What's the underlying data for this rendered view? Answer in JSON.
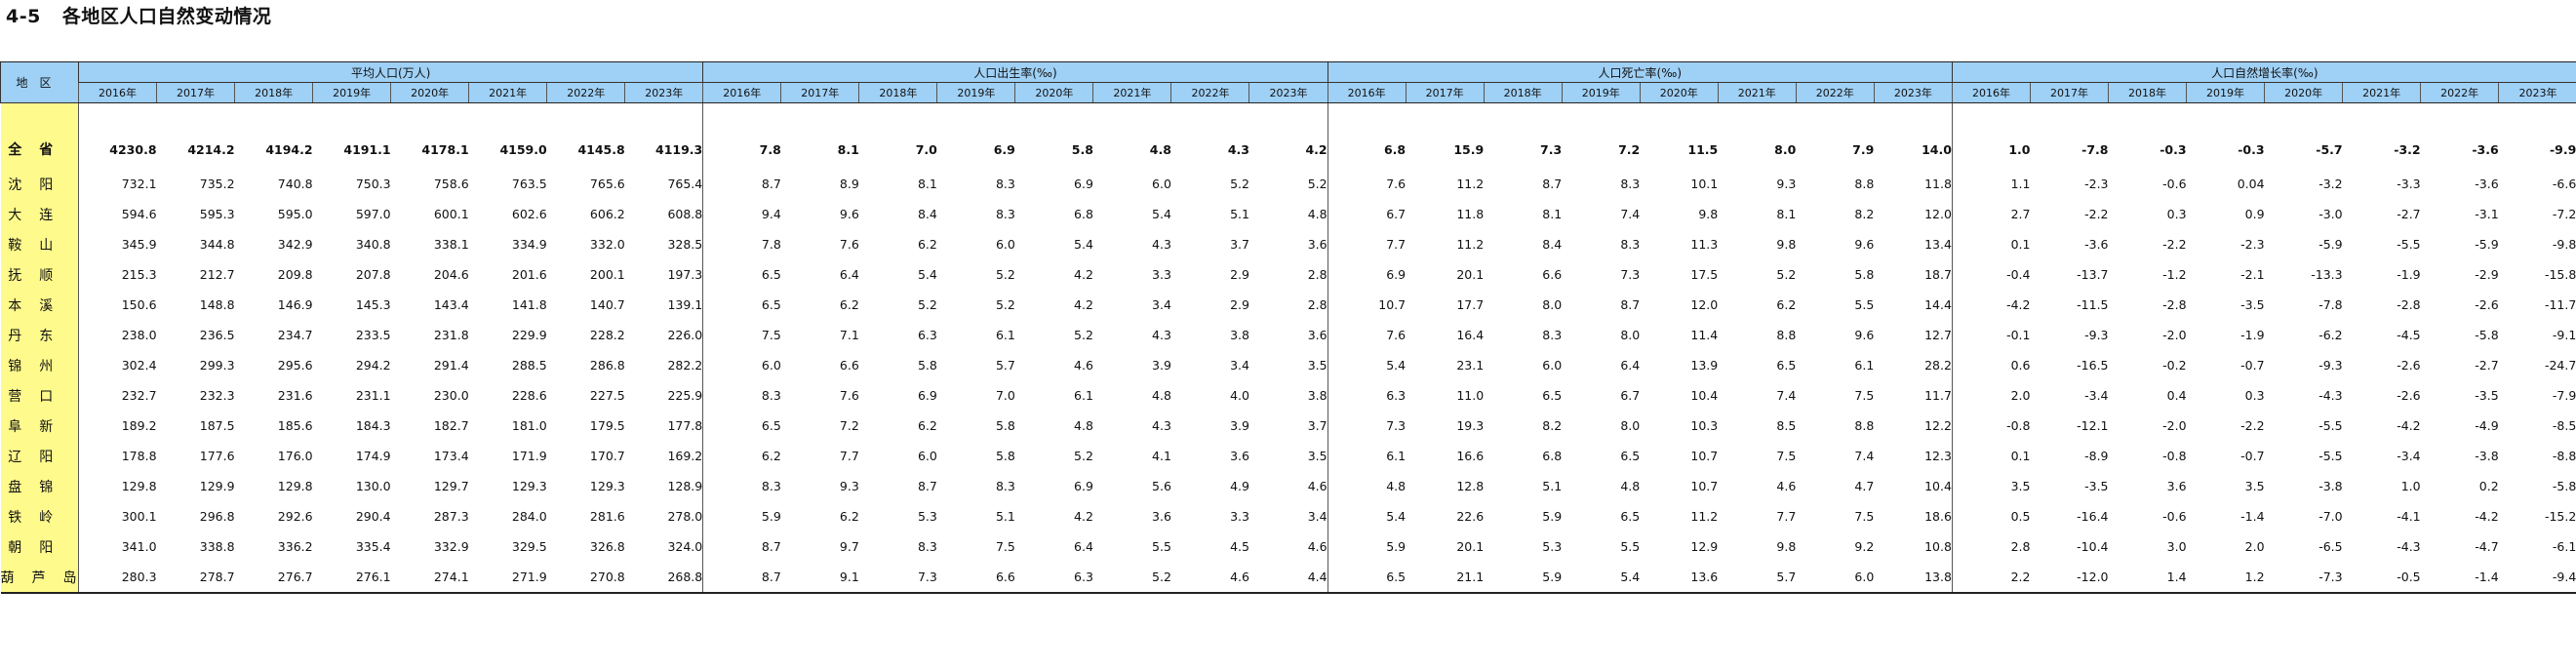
{
  "title": {
    "number": "4-5",
    "text": "各地区人口自然变动情况"
  },
  "region_header": "地区",
  "groups": [
    "平均人口(万人)",
    "人口出生率(‰)",
    "人口死亡率(‰)",
    "人口自然增长率(‰)"
  ],
  "years": [
    "2016年",
    "2017年",
    "2018年",
    "2019年",
    "2020年",
    "2021年",
    "2022年",
    "2023年"
  ],
  "rows": [
    {
      "region": "全省",
      "values": [
        "4230.8",
        "4214.2",
        "4194.2",
        "4191.1",
        "4178.1",
        "4159.0",
        "4145.8",
        "4119.3",
        "7.8",
        "8.1",
        "7.0",
        "6.9",
        "5.8",
        "4.8",
        "4.3",
        "4.2",
        "6.8",
        "15.9",
        "7.3",
        "7.2",
        "11.5",
        "8.0",
        "7.9",
        "14.0",
        "1.0",
        "-7.8",
        "-0.3",
        "-0.3",
        "-5.7",
        "-3.2",
        "-3.6",
        "-9.9"
      ]
    },
    {
      "region": "沈阳",
      "values": [
        "732.1",
        "735.2",
        "740.8",
        "750.3",
        "758.6",
        "763.5",
        "765.6",
        "765.4",
        "8.7",
        "8.9",
        "8.1",
        "8.3",
        "6.9",
        "6.0",
        "5.2",
        "5.2",
        "7.6",
        "11.2",
        "8.7",
        "8.3",
        "10.1",
        "9.3",
        "8.8",
        "11.8",
        "1.1",
        "-2.3",
        "-0.6",
        "0.04",
        "-3.2",
        "-3.3",
        "-3.6",
        "-6.6"
      ]
    },
    {
      "region": "大连",
      "values": [
        "594.6",
        "595.3",
        "595.0",
        "597.0",
        "600.1",
        "602.6",
        "606.2",
        "608.8",
        "9.4",
        "9.6",
        "8.4",
        "8.3",
        "6.8",
        "5.4",
        "5.1",
        "4.8",
        "6.7",
        "11.8",
        "8.1",
        "7.4",
        "9.8",
        "8.1",
        "8.2",
        "12.0",
        "2.7",
        "-2.2",
        "0.3",
        "0.9",
        "-3.0",
        "-2.7",
        "-3.1",
        "-7.2"
      ]
    },
    {
      "region": "鞍山",
      "values": [
        "345.9",
        "344.8",
        "342.9",
        "340.8",
        "338.1",
        "334.9",
        "332.0",
        "328.5",
        "7.8",
        "7.6",
        "6.2",
        "6.0",
        "5.4",
        "4.3",
        "3.7",
        "3.6",
        "7.7",
        "11.2",
        "8.4",
        "8.3",
        "11.3",
        "9.8",
        "9.6",
        "13.4",
        "0.1",
        "-3.6",
        "-2.2",
        "-2.3",
        "-5.9",
        "-5.5",
        "-5.9",
        "-9.8"
      ]
    },
    {
      "region": "抚顺",
      "values": [
        "215.3",
        "212.7",
        "209.8",
        "207.8",
        "204.6",
        "201.6",
        "200.1",
        "197.3",
        "6.5",
        "6.4",
        "5.4",
        "5.2",
        "4.2",
        "3.3",
        "2.9",
        "2.8",
        "6.9",
        "20.1",
        "6.6",
        "7.3",
        "17.5",
        "5.2",
        "5.8",
        "18.7",
        "-0.4",
        "-13.7",
        "-1.2",
        "-2.1",
        "-13.3",
        "-1.9",
        "-2.9",
        "-15.8"
      ]
    },
    {
      "region": "本溪",
      "values": [
        "150.6",
        "148.8",
        "146.9",
        "145.3",
        "143.4",
        "141.8",
        "140.7",
        "139.1",
        "6.5",
        "6.2",
        "5.2",
        "5.2",
        "4.2",
        "3.4",
        "2.9",
        "2.8",
        "10.7",
        "17.7",
        "8.0",
        "8.7",
        "12.0",
        "6.2",
        "5.5",
        "14.4",
        "-4.2",
        "-11.5",
        "-2.8",
        "-3.5",
        "-7.8",
        "-2.8",
        "-2.6",
        "-11.7"
      ]
    },
    {
      "region": "丹东",
      "values": [
        "238.0",
        "236.5",
        "234.7",
        "233.5",
        "231.8",
        "229.9",
        "228.2",
        "226.0",
        "7.5",
        "7.1",
        "6.3",
        "6.1",
        "5.2",
        "4.3",
        "3.8",
        "3.6",
        "7.6",
        "16.4",
        "8.3",
        "8.0",
        "11.4",
        "8.8",
        "9.6",
        "12.7",
        "-0.1",
        "-9.3",
        "-2.0",
        "-1.9",
        "-6.2",
        "-4.5",
        "-5.8",
        "-9.1"
      ]
    },
    {
      "region": "锦州",
      "values": [
        "302.4",
        "299.3",
        "295.6",
        "294.2",
        "291.4",
        "288.5",
        "286.8",
        "282.2",
        "6.0",
        "6.6",
        "5.8",
        "5.7",
        "4.6",
        "3.9",
        "3.4",
        "3.5",
        "5.4",
        "23.1",
        "6.0",
        "6.4",
        "13.9",
        "6.5",
        "6.1",
        "28.2",
        "0.6",
        "-16.5",
        "-0.2",
        "-0.7",
        "-9.3",
        "-2.6",
        "-2.7",
        "-24.7"
      ]
    },
    {
      "region": "营口",
      "values": [
        "232.7",
        "232.3",
        "231.6",
        "231.1",
        "230.0",
        "228.6",
        "227.5",
        "225.9",
        "8.3",
        "7.6",
        "6.9",
        "7.0",
        "6.1",
        "4.8",
        "4.0",
        "3.8",
        "6.3",
        "11.0",
        "6.5",
        "6.7",
        "10.4",
        "7.4",
        "7.5",
        "11.7",
        "2.0",
        "-3.4",
        "0.4",
        "0.3",
        "-4.3",
        "-2.6",
        "-3.5",
        "-7.9"
      ]
    },
    {
      "region": "阜新",
      "values": [
        "189.2",
        "187.5",
        "185.6",
        "184.3",
        "182.7",
        "181.0",
        "179.5",
        "177.8",
        "6.5",
        "7.2",
        "6.2",
        "5.8",
        "4.8",
        "4.3",
        "3.9",
        "3.7",
        "7.3",
        "19.3",
        "8.2",
        "8.0",
        "10.3",
        "8.5",
        "8.8",
        "12.2",
        "-0.8",
        "-12.1",
        "-2.0",
        "-2.2",
        "-5.5",
        "-4.2",
        "-4.9",
        "-8.5"
      ]
    },
    {
      "region": "辽阳",
      "values": [
        "178.8",
        "177.6",
        "176.0",
        "174.9",
        "173.4",
        "171.9",
        "170.7",
        "169.2",
        "6.2",
        "7.7",
        "6.0",
        "5.8",
        "5.2",
        "4.1",
        "3.6",
        "3.5",
        "6.1",
        "16.6",
        "6.8",
        "6.5",
        "10.7",
        "7.5",
        "7.4",
        "12.3",
        "0.1",
        "-8.9",
        "-0.8",
        "-0.7",
        "-5.5",
        "-3.4",
        "-3.8",
        "-8.8"
      ]
    },
    {
      "region": "盘锦",
      "values": [
        "129.8",
        "129.9",
        "129.8",
        "130.0",
        "129.7",
        "129.3",
        "129.3",
        "128.9",
        "8.3",
        "9.3",
        "8.7",
        "8.3",
        "6.9",
        "5.6",
        "4.9",
        "4.6",
        "4.8",
        "12.8",
        "5.1",
        "4.8",
        "10.7",
        "4.6",
        "4.7",
        "10.4",
        "3.5",
        "-3.5",
        "3.6",
        "3.5",
        "-3.8",
        "1.0",
        "0.2",
        "-5.8"
      ]
    },
    {
      "region": "铁岭",
      "values": [
        "300.1",
        "296.8",
        "292.6",
        "290.4",
        "287.3",
        "284.0",
        "281.6",
        "278.0",
        "5.9",
        "6.2",
        "5.3",
        "5.1",
        "4.2",
        "3.6",
        "3.3",
        "3.4",
        "5.4",
        "22.6",
        "5.9",
        "6.5",
        "11.2",
        "7.7",
        "7.5",
        "18.6",
        "0.5",
        "-16.4",
        "-0.6",
        "-1.4",
        "-7.0",
        "-4.1",
        "-4.2",
        "-15.2"
      ]
    },
    {
      "region": "朝阳",
      "values": [
        "341.0",
        "338.8",
        "336.2",
        "335.4",
        "332.9",
        "329.5",
        "326.8",
        "324.0",
        "8.7",
        "9.7",
        "8.3",
        "7.5",
        "6.4",
        "5.5",
        "4.5",
        "4.6",
        "5.9",
        "20.1",
        "5.3",
        "5.5",
        "12.9",
        "9.8",
        "9.2",
        "10.8",
        "2.8",
        "-10.4",
        "3.0",
        "2.0",
        "-6.5",
        "-4.3",
        "-4.7",
        "-6.1"
      ]
    },
    {
      "region": "葫芦岛",
      "values": [
        "280.3",
        "278.7",
        "276.7",
        "276.1",
        "274.1",
        "271.9",
        "270.8",
        "268.8",
        "8.7",
        "9.1",
        "7.3",
        "6.6",
        "6.3",
        "5.2",
        "4.6",
        "4.4",
        "6.5",
        "21.1",
        "5.9",
        "5.4",
        "13.6",
        "5.7",
        "6.0",
        "13.8",
        "2.2",
        "-12.0",
        "1.4",
        "1.2",
        "-7.3",
        "-0.5",
        "-1.4",
        "-9.4"
      ]
    }
  ]
}
